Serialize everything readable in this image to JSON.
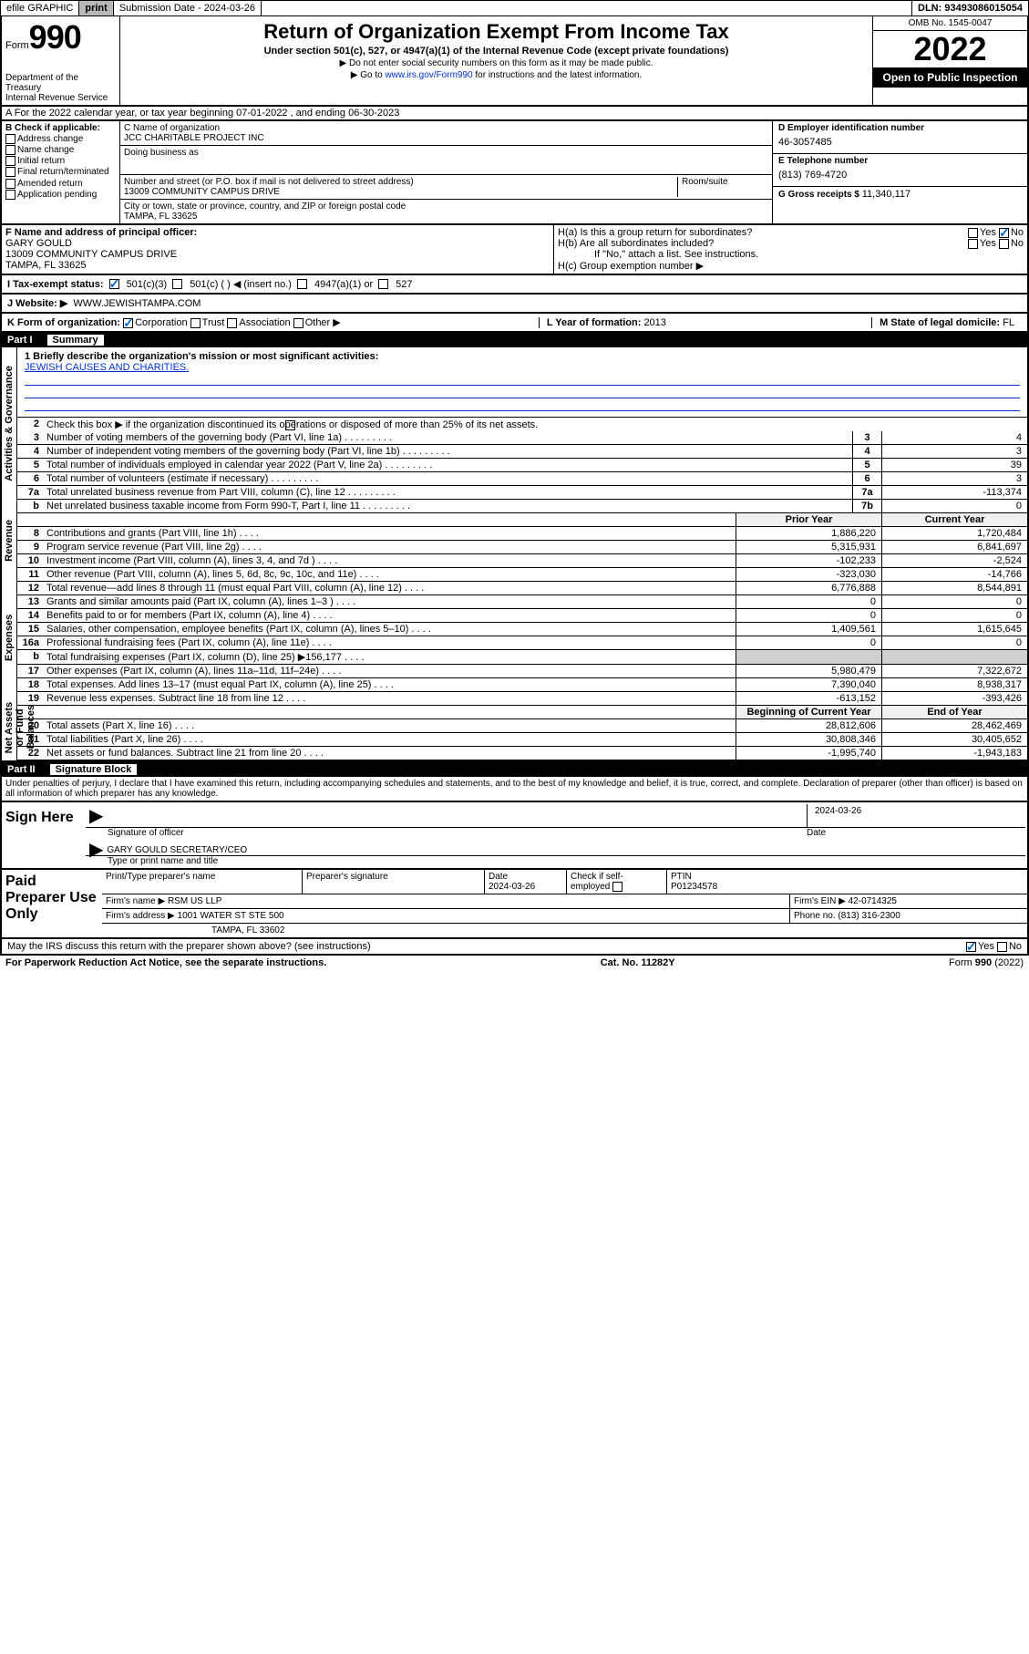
{
  "topbar": {
    "efile": "efile GRAPHIC",
    "print": "print",
    "submission_label": "Submission Date - ",
    "submission_date": "2024-03-26",
    "dln_label": "DLN: ",
    "dln": "93493086015054"
  },
  "header": {
    "form_label": "Form",
    "form_num": "990",
    "dept": "Department of the Treasury\nInternal Revenue Service",
    "title": "Return of Organization Exempt From Income Tax",
    "subtitle": "Under section 501(c), 527, or 4947(a)(1) of the Internal Revenue Code (except private foundations)",
    "instr1": "▶ Do not enter social security numbers on this form as it may be made public.",
    "instr2_pre": "▶ Go to ",
    "instr2_link": "www.irs.gov/Form990",
    "instr2_post": " for instructions and the latest information.",
    "omb": "OMB No. 1545-0047",
    "year": "2022",
    "open_public": "Open to Public Inspection"
  },
  "row_a": "A For the 2022 calendar year, or tax year beginning 07-01-2022   , and ending 06-30-2023",
  "col_b": {
    "label": "B Check if applicable:",
    "items": [
      "Address change",
      "Name change",
      "Initial return",
      "Final return/terminated",
      "Amended return",
      "Application pending"
    ]
  },
  "org": {
    "name_label": "C Name of organization",
    "name": "JCC CHARITABLE PROJECT INC",
    "dba_label": "Doing business as",
    "addr_label": "Number and street (or P.O. box if mail is not delivered to street address)",
    "addr": "13009 COMMUNITY CAMPUS DRIVE",
    "room_label": "Room/suite",
    "city_label": "City or town, state or province, country, and ZIP or foreign postal code",
    "city": "TAMPA, FL  33625"
  },
  "right_col": {
    "ein_label": "D Employer identification number",
    "ein": "46-3057485",
    "phone_label": "E Telephone number",
    "phone": "(813) 769-4720",
    "gross_label": "G Gross receipts $ ",
    "gross": "11,340,117"
  },
  "section_f": {
    "label": "F  Name and address of principal officer:",
    "name": "GARY GOULD",
    "addr": "13009 COMMUNITY CAMPUS DRIVE",
    "city": "TAMPA, FL  33625",
    "ha": "H(a)  Is this a group return for subordinates?",
    "hb": "H(b)  Are all subordinates included?",
    "hb_note": "If \"No,\" attach a list. See instructions.",
    "hc": "H(c)  Group exemption number ▶"
  },
  "status": {
    "label": "I    Tax-exempt status:",
    "opts": [
      "501(c)(3)",
      "501(c) (  ) ◀ (insert no.)",
      "4947(a)(1) or",
      "527"
    ]
  },
  "website": {
    "label": "J   Website: ▶ ",
    "value": "WWW.JEWISHTAMPA.COM"
  },
  "form_org": {
    "label": "K Form of organization:",
    "opts": [
      "Corporation",
      "Trust",
      "Association",
      "Other ▶"
    ],
    "year_label": "L Year of formation: ",
    "year": "2013",
    "domicile_label": "M State of legal domicile: ",
    "domicile": "FL"
  },
  "parts": {
    "p1": "Part I",
    "p1_title": "Summary",
    "p2": "Part II",
    "p2_title": "Signature Block"
  },
  "summary": {
    "briefly_label": "1  Briefly describe the organization's mission or most significant activities:",
    "briefly": "JEWISH CAUSES AND CHARITIES.",
    "line2": "Check this box ▶     if the organization discontinued its operations or disposed of more than 25% of its net assets.",
    "lines_gov": [
      {
        "n": "3",
        "t": "Number of voting members of the governing body (Part VI, line 1a)",
        "nc": "3",
        "v": "4"
      },
      {
        "n": "4",
        "t": "Number of independent voting members of the governing body (Part VI, line 1b)",
        "nc": "4",
        "v": "3"
      },
      {
        "n": "5",
        "t": "Total number of individuals employed in calendar year 2022 (Part V, line 2a)",
        "nc": "5",
        "v": "39"
      },
      {
        "n": "6",
        "t": "Total number of volunteers (estimate if necessary)",
        "nc": "6",
        "v": "3"
      },
      {
        "n": "7a",
        "t": "Total unrelated business revenue from Part VIII, column (C), line 12",
        "nc": "7a",
        "v": "-113,374"
      },
      {
        "n": "b",
        "t": "Net unrelated business taxable income from Form 990-T, Part I, line 11",
        "nc": "7b",
        "v": "0"
      }
    ],
    "col_headers": {
      "prior": "Prior Year",
      "current": "Current Year"
    },
    "revenue": [
      {
        "n": "8",
        "t": "Contributions and grants (Part VIII, line 1h)",
        "p": "1,886,220",
        "c": "1,720,484"
      },
      {
        "n": "9",
        "t": "Program service revenue (Part VIII, line 2g)",
        "p": "5,315,931",
        "c": "6,841,697"
      },
      {
        "n": "10",
        "t": "Investment income (Part VIII, column (A), lines 3, 4, and 7d )",
        "p": "-102,233",
        "c": "-2,524"
      },
      {
        "n": "11",
        "t": "Other revenue (Part VIII, column (A), lines 5, 6d, 8c, 9c, 10c, and 11e)",
        "p": "-323,030",
        "c": "-14,766"
      },
      {
        "n": "12",
        "t": "Total revenue—add lines 8 through 11 (must equal Part VIII, column (A), line 12)",
        "p": "6,776,888",
        "c": "8,544,891"
      }
    ],
    "expenses": [
      {
        "n": "13",
        "t": "Grants and similar amounts paid (Part IX, column (A), lines 1–3 )",
        "p": "0",
        "c": "0"
      },
      {
        "n": "14",
        "t": "Benefits paid to or for members (Part IX, column (A), line 4)",
        "p": "0",
        "c": "0"
      },
      {
        "n": "15",
        "t": "Salaries, other compensation, employee benefits (Part IX, column (A), lines 5–10)",
        "p": "1,409,561",
        "c": "1,615,645"
      },
      {
        "n": "16a",
        "t": "Professional fundraising fees (Part IX, column (A), line 11e)",
        "p": "0",
        "c": "0"
      },
      {
        "n": "b",
        "t": "Total fundraising expenses (Part IX, column (D), line 25) ▶156,177",
        "p": "",
        "c": "",
        "shaded": true
      },
      {
        "n": "17",
        "t": "Other expenses (Part IX, column (A), lines 11a–11d, 11f–24e)",
        "p": "5,980,479",
        "c": "7,322,672"
      },
      {
        "n": "18",
        "t": "Total expenses. Add lines 13–17 (must equal Part IX, column (A), line 25)",
        "p": "7,390,040",
        "c": "8,938,317"
      },
      {
        "n": "19",
        "t": "Revenue less expenses. Subtract line 18 from line 12",
        "p": "-613,152",
        "c": "-393,426"
      }
    ],
    "net_headers": {
      "begin": "Beginning of Current Year",
      "end": "End of Year"
    },
    "net": [
      {
        "n": "20",
        "t": "Total assets (Part X, line 16)",
        "p": "28,812,606",
        "c": "28,462,469"
      },
      {
        "n": "21",
        "t": "Total liabilities (Part X, line 26)",
        "p": "30,808,346",
        "c": "30,405,652"
      },
      {
        "n": "22",
        "t": "Net assets or fund balances. Subtract line 21 from line 20",
        "p": "-1,995,740",
        "c": "-1,943,183"
      }
    ]
  },
  "sig": {
    "penalties": "Under penalties of perjury, I declare that I have examined this return, including accompanying schedules and statements, and to the best of my knowledge and belief, it is true, correct, and complete. Declaration of preparer (other than officer) is based on all information of which preparer has any knowledge.",
    "sign_here": "Sign Here",
    "sig_officer": "Signature of officer",
    "sig_date": "2024-03-26",
    "date_label": "Date",
    "name_title": "GARY GOULD  SECRETARY/CEO",
    "name_title_label": "Type or print name and title"
  },
  "prep": {
    "label": "Paid Preparer Use Only",
    "headers": [
      "Print/Type preparer's name",
      "Preparer's signature",
      "Date",
      "",
      "PTIN"
    ],
    "date": "2024-03-26",
    "self_emp": "Check      if self-employed",
    "ptin": "P01234578",
    "firm_label": "Firm's name    ▶ ",
    "firm": "RSM US LLP",
    "ein_label": "Firm's EIN ▶ ",
    "ein": "42-0714325",
    "addr_label": "Firm's address ▶ ",
    "addr": "1001 WATER ST STE 500",
    "city": "TAMPA, FL  33602",
    "phone_label": "Phone no. ",
    "phone": "(813) 316-2300"
  },
  "bottom": {
    "discuss": "May the IRS discuss this return with the preparer shown above? (see instructions)",
    "yes": "Yes",
    "no": "No"
  },
  "footer": {
    "paperwork": "For Paperwork Reduction Act Notice, see the separate instructions.",
    "cat": "Cat. No. 11282Y",
    "form": "Form 990 (2022)"
  },
  "side_labels": {
    "gov": "Activities & Governance",
    "rev": "Revenue",
    "exp": "Expenses",
    "net": "Net Assets or Fund Balances"
  }
}
